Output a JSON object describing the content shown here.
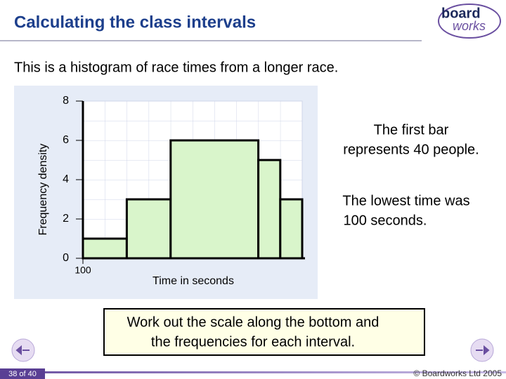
{
  "header": {
    "title": "Calculating the class intervals",
    "logo": [
      "board",
      "works"
    ]
  },
  "intro": "This is a histogram of race times from a longer race.",
  "chart_data": {
    "type": "histogram",
    "bins": [
      100,
      140,
      180,
      260,
      280,
      300
    ],
    "values": [
      1,
      3,
      6,
      5,
      3
    ],
    "color": "#d9f5cb",
    "xlim": [
      100,
      300
    ],
    "xticks": [
      100
    ],
    "ylim": [
      0,
      8
    ],
    "yticks": [
      0,
      2,
      4,
      6,
      8
    ],
    "xlabel": "Time in seconds",
    "ylabel": "Frequency density",
    "grid": true
  },
  "notes": [
    [
      "The first bar",
      "represents 40 people."
    ],
    [
      "The lowest time was",
      "100 seconds."
    ]
  ],
  "task": [
    "Work out the scale along the bottom and",
    "the frequencies for each interval."
  ],
  "footer": {
    "page": "38 of 40",
    "copyright": "© Boardworks Ltd 2005"
  }
}
